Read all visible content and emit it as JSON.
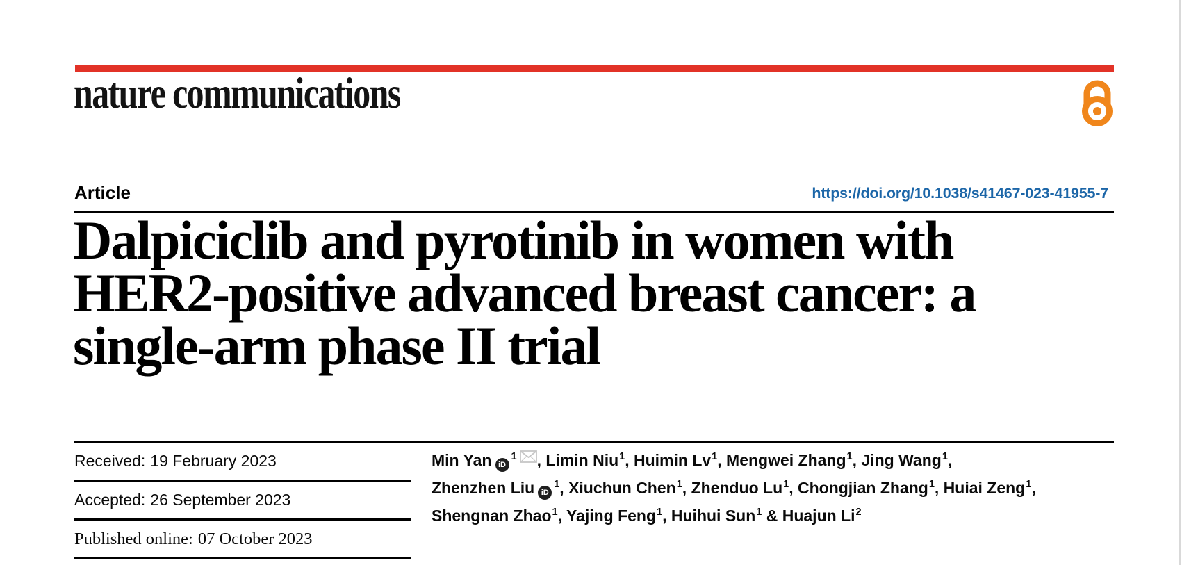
{
  "journal": {
    "name": "nature communications"
  },
  "header": {
    "article_label": "Article",
    "doi": "https://doi.org/10.1038/s41467-023-41955-7"
  },
  "title": {
    "lines": [
      "Dalpiciclib and pyrotinib in women with",
      "HER2-positive advanced breast cancer: a",
      "single-arm phase II trial"
    ]
  },
  "meta": {
    "rows": [
      {
        "label": "Received:",
        "value": "19 February 2023"
      },
      {
        "label": "Accepted:",
        "value": "26 September 2023"
      },
      {
        "label": "Published online:",
        "value": "07 October 2023"
      }
    ]
  },
  "authors": {
    "lines": [
      [
        {
          "name": "Min Yan",
          "orcid": true,
          "sup": "1",
          "mail": true,
          "after": ", "
        },
        {
          "name": "Limin Niu",
          "sup": "1",
          "after": ", "
        },
        {
          "name": "Huimin Lv",
          "sup": "1",
          "after": ", "
        },
        {
          "name": "Mengwei Zhang",
          "sup": "1",
          "after": ", "
        },
        {
          "name": "Jing Wang",
          "sup": "1",
          "after": ","
        }
      ],
      [
        {
          "name": "Zhenzhen Liu",
          "orcid": true,
          "sup": "1",
          "after": ", "
        },
        {
          "name": "Xiuchun Chen",
          "sup": "1",
          "after": ", "
        },
        {
          "name": "Zhenduo Lu",
          "sup": "1",
          "after": ", "
        },
        {
          "name": "Chongjian Zhang",
          "sup": "1",
          "after": ", "
        },
        {
          "name": "Huiai Zeng",
          "sup": "1",
          "after": ","
        }
      ],
      [
        {
          "name": "Shengnan Zhao",
          "sup": "1",
          "after": ", "
        },
        {
          "name": "Yajing Feng",
          "sup": "1",
          "after": ", "
        },
        {
          "name": "Huihui Sun",
          "sup": "1",
          "after": " & "
        },
        {
          "name": "Huajun Li",
          "sup": "2",
          "after": ""
        }
      ]
    ]
  },
  "icons": {
    "open_access": "open-access-lock-icon",
    "orcid_badge_text": "iD",
    "email": "envelope-icon"
  },
  "colors": {
    "brand_red": "#e23227",
    "open_access_orange": "#f0861b",
    "doi_link_blue": "#1c66a8",
    "orcid_black": "#1f1f1f",
    "envelope_gray": "#c6c6c6",
    "rule_black": "#000000",
    "page_edge_gray": "#d9d9d9"
  }
}
